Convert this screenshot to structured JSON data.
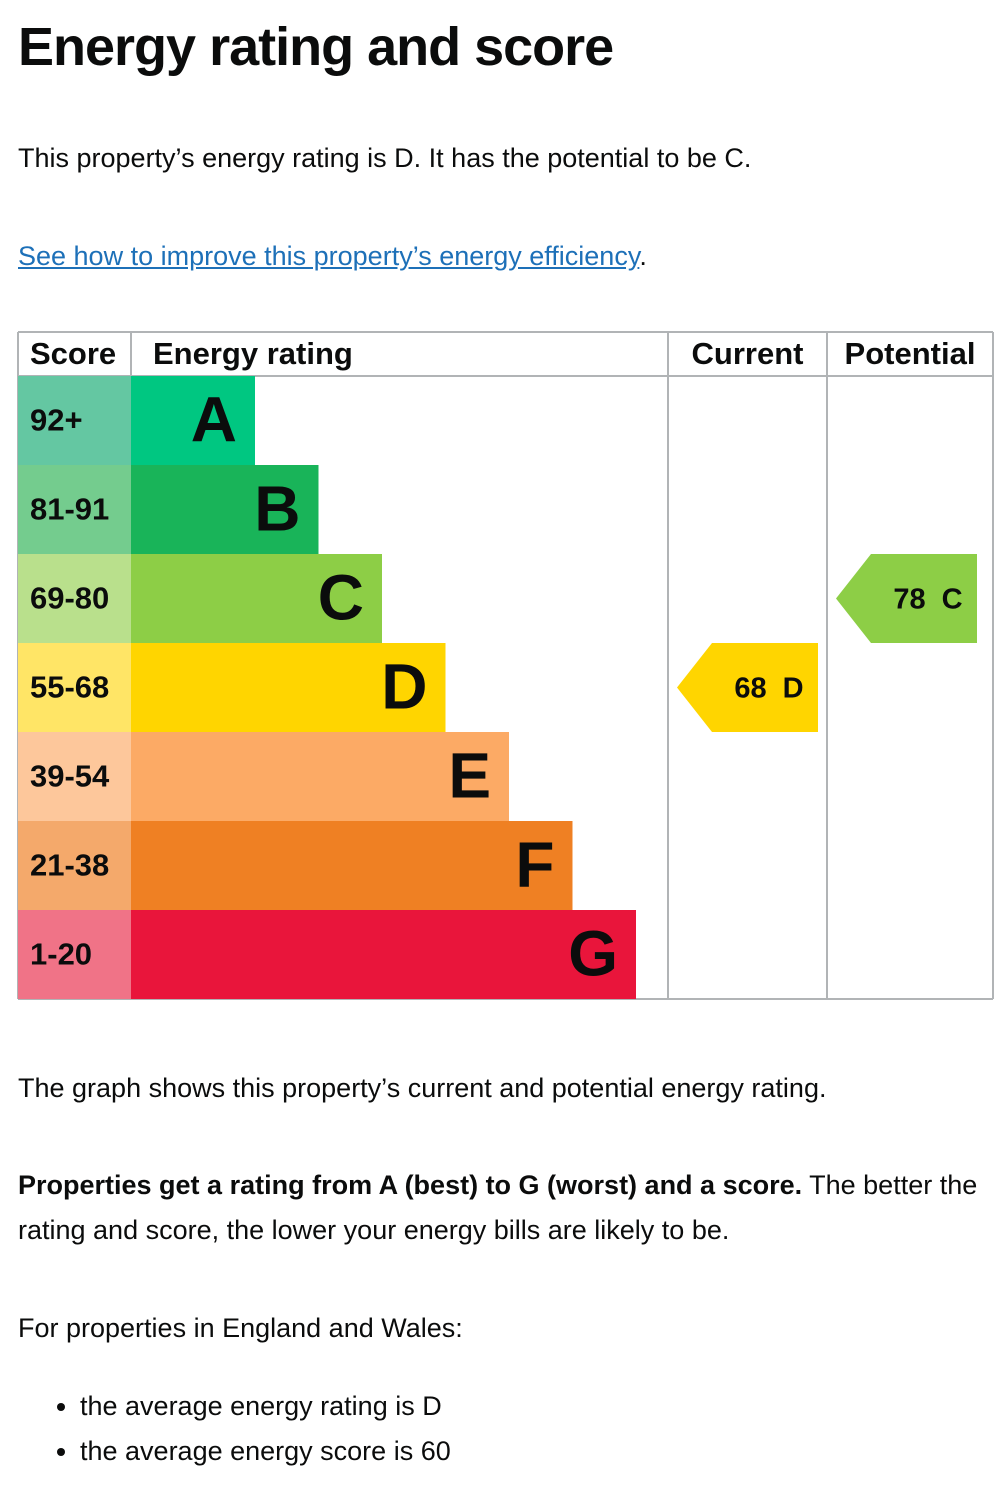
{
  "header": {
    "title": "Energy rating and score"
  },
  "intro": "This property’s energy rating is D. It has the potential to be C.",
  "link": {
    "text": "See how to improve this property’s energy efficiency",
    "after": "."
  },
  "graph": {
    "headers": [
      "Score",
      "Energy rating",
      "Current",
      "Potential"
    ],
    "bands": [
      {
        "score": "92+",
        "letter": "A",
        "color": "#00c781",
        "score_color": "#64c7a2"
      },
      {
        "score": "81-91",
        "letter": "B",
        "color": "#19b459",
        "score_color": "#74cc8e"
      },
      {
        "score": "69-80",
        "letter": "C",
        "color": "#8dce46",
        "score_color": "#b9e08c"
      },
      {
        "score": "55-68",
        "letter": "D",
        "color": "#ffd500",
        "score_color": "#ffe566"
      },
      {
        "score": "39-54",
        "letter": "E",
        "color": "#fcaa65",
        "score_color": "#fdc79b"
      },
      {
        "score": "21-38",
        "letter": "F",
        "color": "#ef8023",
        "score_color": "#f4a96b"
      },
      {
        "score": "1-20",
        "letter": "G",
        "color": "#e9153b",
        "score_color": "#f07387"
      }
    ],
    "current": {
      "score": 68,
      "letter": "D"
    },
    "potential": {
      "score": 78,
      "letter": "C"
    }
  },
  "description": "The graph shows this property’s current and potential energy rating.",
  "ratings": {
    "bold": "Properties get a rating from A (best) to G (worst) and a score.",
    "text": "The better the rating and score, the lower your energy bills are likely to be."
  },
  "region": "For properties in England and Wales:",
  "averages": [
    "the average energy rating is D",
    "the average energy score is 60"
  ]
}
